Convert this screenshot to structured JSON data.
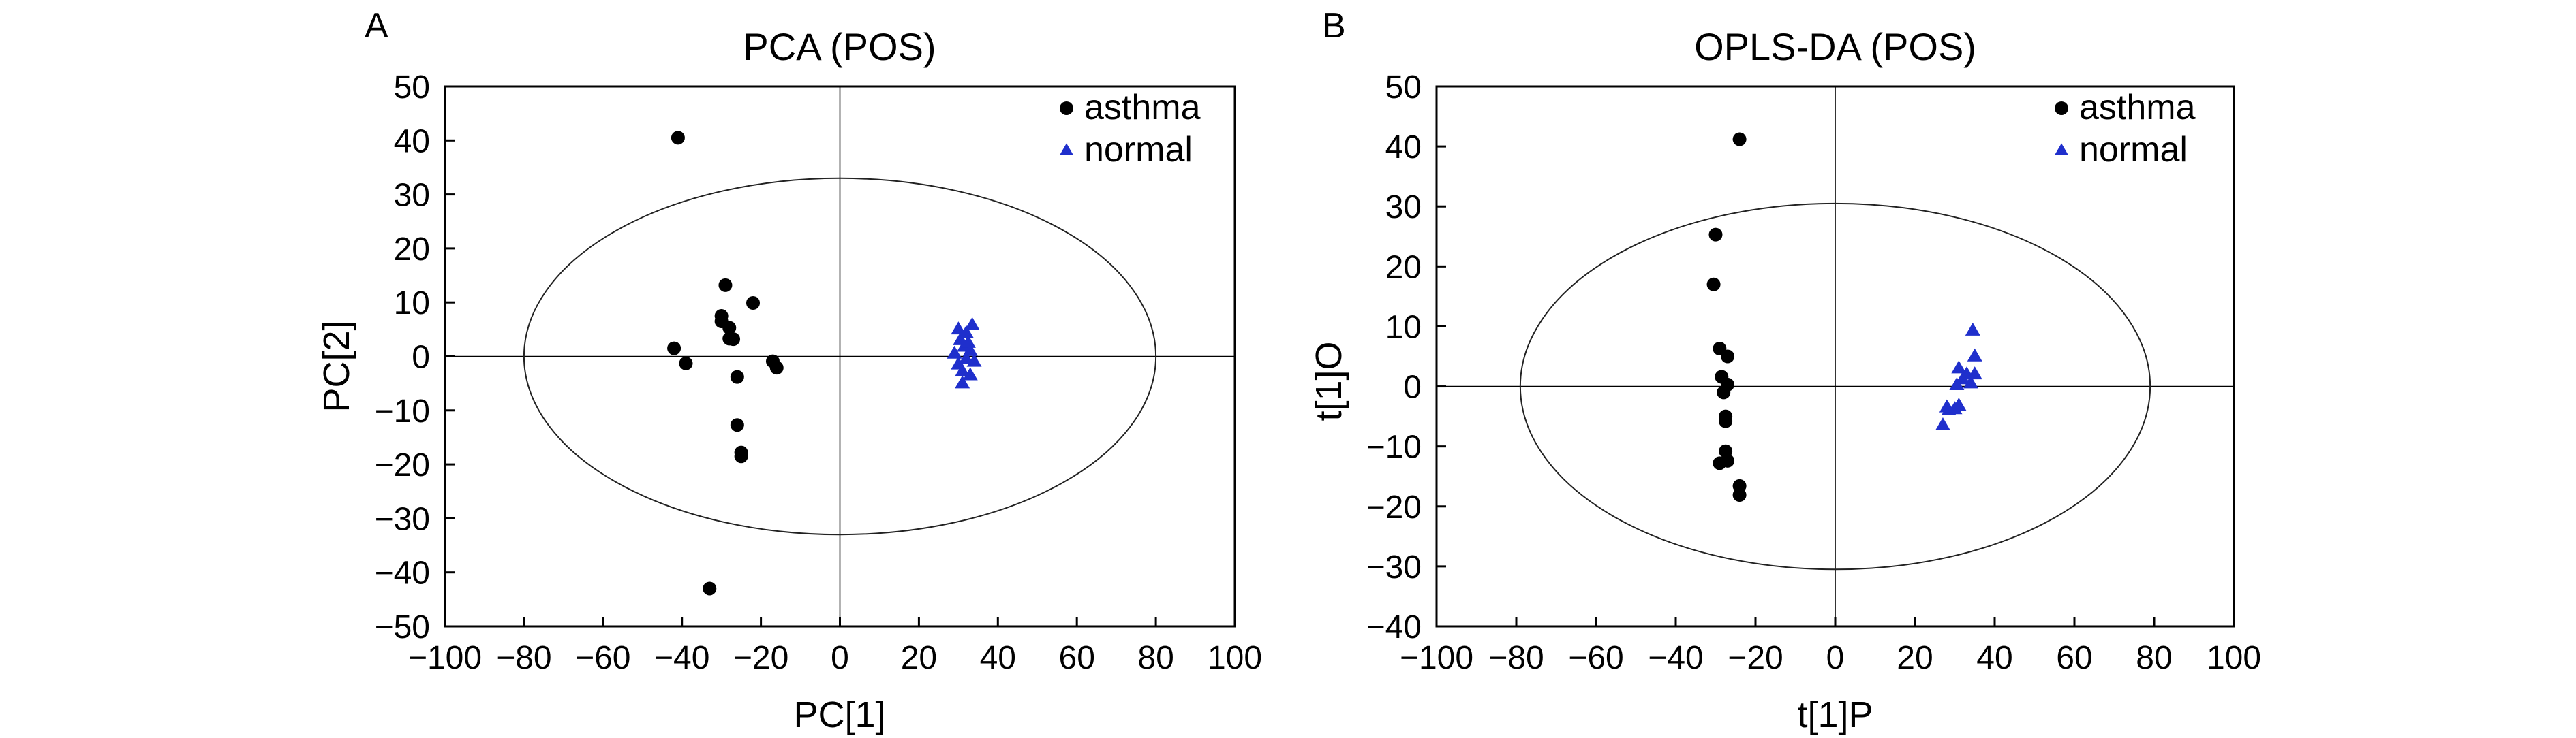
{
  "colors": {
    "asthma": "#000000",
    "normal": "#1f2fcc",
    "axis": "#000000"
  },
  "chart_data": [
    {
      "panel": "A",
      "type": "scatter",
      "title": "PCA (POS)",
      "xlabel": "PC[1]",
      "ylabel": "PC[2]",
      "xlim": [
        -100,
        100
      ],
      "ylim": [
        -50,
        50
      ],
      "xticks": [
        -100,
        -80,
        -60,
        -40,
        -20,
        0,
        20,
        40,
        60,
        80,
        100
      ],
      "yticks": [
        -50,
        -40,
        -30,
        -20,
        -10,
        0,
        10,
        20,
        30,
        40,
        50
      ],
      "legend_position": "top-right",
      "ellipse": {
        "cx": 0,
        "cy": 0,
        "rx": 80,
        "ry": 33
      },
      "series": [
        {
          "name": "asthma",
          "marker": "circle",
          "points": [
            [
              -41,
              40.5
            ],
            [
              -42,
              1.5
            ],
            [
              -39,
              -1.3
            ],
            [
              -33,
              -43
            ],
            [
              -30,
              6.5
            ],
            [
              -30,
              7.5
            ],
            [
              -29,
              13.2
            ],
            [
              -28,
              3.3
            ],
            [
              -28,
              5.3
            ],
            [
              -27,
              3.2
            ],
            [
              -26,
              -12.7
            ],
            [
              -26,
              -3.8
            ],
            [
              -25,
              -17.8
            ],
            [
              -25,
              -18.5
            ],
            [
              -22,
              9.9
            ],
            [
              -17,
              -0.9
            ],
            [
              -16,
              -2.1
            ]
          ]
        },
        {
          "name": "normal",
          "marker": "triangle",
          "points": [
            [
              29,
              0.5
            ],
            [
              30,
              5
            ],
            [
              30,
              -1.5
            ],
            [
              30.5,
              3
            ],
            [
              31,
              -2.8
            ],
            [
              31,
              -5
            ],
            [
              31.5,
              1.8
            ],
            [
              32,
              4.3
            ],
            [
              32,
              -0.5
            ],
            [
              32.5,
              2.5
            ],
            [
              33,
              1
            ],
            [
              33,
              -3.5
            ],
            [
              33.5,
              5.8
            ],
            [
              34,
              -1
            ]
          ]
        }
      ]
    },
    {
      "panel": "B",
      "type": "scatter",
      "title": "OPLS-DA (POS)",
      "xlabel": "t[1]P",
      "ylabel": "t[1]O",
      "xlim": [
        -100,
        100
      ],
      "ylim": [
        -40,
        50
      ],
      "xticks": [
        -100,
        -80,
        -60,
        -40,
        -20,
        0,
        20,
        40,
        60,
        80,
        100
      ],
      "yticks": [
        -40,
        -30,
        -20,
        -10,
        0,
        10,
        20,
        30,
        40,
        50
      ],
      "legend_position": "top-right",
      "ellipse": {
        "cx": 0,
        "cy": 0,
        "rx": 79,
        "ry": 30.5
      },
      "series": [
        {
          "name": "asthma",
          "marker": "circle",
          "points": [
            [
              -24,
              41.2
            ],
            [
              -30,
              25.3
            ],
            [
              -30.5,
              17
            ],
            [
              -29,
              6.3
            ],
            [
              -27,
              5
            ],
            [
              -28.5,
              1.6
            ],
            [
              -27,
              0.3
            ],
            [
              -28,
              -1
            ],
            [
              -27.5,
              -5
            ],
            [
              -27.5,
              -5.8
            ],
            [
              -27.5,
              -10.8
            ],
            [
              -29,
              -12.8
            ],
            [
              -27,
              -12.4
            ],
            [
              -24,
              -16.6
            ],
            [
              -24,
              -18.1
            ]
          ]
        },
        {
          "name": "normal",
          "marker": "triangle",
          "points": [
            [
              34.5,
              9.3
            ],
            [
              35,
              5
            ],
            [
              31,
              3
            ],
            [
              33,
              2
            ],
            [
              35,
              2
            ],
            [
              32,
              1.2
            ],
            [
              30.5,
              0.2
            ],
            [
              34,
              0.5
            ],
            [
              31,
              -3.2
            ],
            [
              30,
              -3.8
            ],
            [
              28.5,
              -4
            ],
            [
              28,
              -3.5
            ],
            [
              27,
              -6.5
            ]
          ]
        }
      ]
    }
  ]
}
